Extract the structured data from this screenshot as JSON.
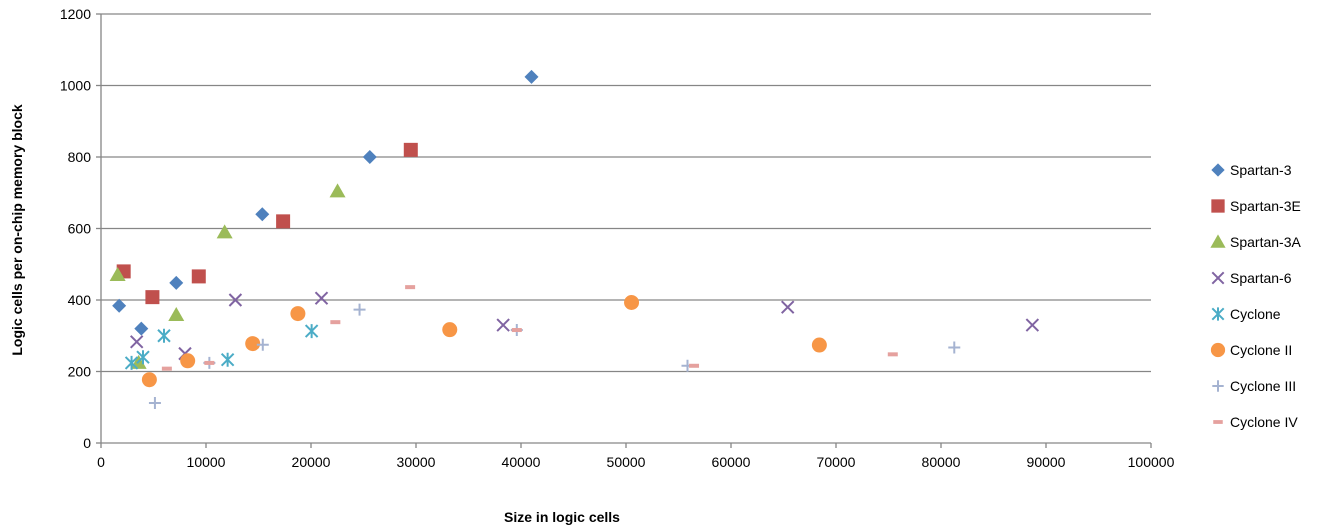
{
  "chart_data": {
    "type": "scatter",
    "title": "",
    "xlabel": "Size in logic cells",
    "ylabel": "Logic cells per on-chip memory block",
    "xlim": [
      0,
      100000
    ],
    "ylim": [
      0,
      1200
    ],
    "x_ticks": [
      "0",
      "10000",
      "20000",
      "30000",
      "40000",
      "50000",
      "60000",
      "70000",
      "80000",
      "90000",
      "100000"
    ],
    "y_ticks": [
      "0",
      "200",
      "400",
      "600",
      "800",
      "1000",
      "1200"
    ],
    "grid": "horizontal",
    "legend_position": "right",
    "series": [
      {
        "name": "Spartan-3",
        "marker": "diamond",
        "color": "#4F81BD",
        "points": [
          [
            1728,
            384
          ],
          [
            3840,
            320
          ],
          [
            7168,
            448
          ],
          [
            15360,
            640
          ],
          [
            25600,
            800
          ],
          [
            41000,
            1024
          ]
        ]
      },
      {
        "name": "Spartan-3E",
        "marker": "square",
        "color": "#C0504D",
        "points": [
          [
            2160,
            480
          ],
          [
            4896,
            408
          ],
          [
            9312,
            466
          ],
          [
            17344,
            620
          ],
          [
            29504,
            820
          ]
        ]
      },
      {
        "name": "Spartan-3A",
        "marker": "triangle",
        "color": "#9BBB59",
        "points": [
          [
            1584,
            470
          ],
          [
            3584,
            224
          ],
          [
            7168,
            358
          ],
          [
            11776,
            589
          ],
          [
            22528,
            704
          ]
        ]
      },
      {
        "name": "Spartan-6",
        "marker": "x",
        "color": "#8064A2",
        "points": [
          [
            3400,
            283
          ],
          [
            8000,
            250
          ],
          [
            12800,
            400
          ],
          [
            21000,
            405
          ],
          [
            38300,
            330
          ],
          [
            65400,
            380
          ],
          [
            88700,
            330
          ]
        ]
      },
      {
        "name": "Cyclone",
        "marker": "asterisk",
        "color": "#4BACC6",
        "points": [
          [
            2910,
            224
          ],
          [
            4000,
            240
          ],
          [
            6000,
            300
          ],
          [
            12060,
            233
          ],
          [
            20060,
            313
          ]
        ]
      },
      {
        "name": "Cyclone II",
        "marker": "circle",
        "color": "#F79646",
        "points": [
          [
            4608,
            177
          ],
          [
            8256,
            230
          ],
          [
            14448,
            278
          ],
          [
            18752,
            362
          ],
          [
            33216,
            317
          ],
          [
            50528,
            393
          ],
          [
            68416,
            274
          ]
        ]
      },
      {
        "name": "Cyclone III",
        "marker": "plus",
        "color": "#A5B3D1",
        "points": [
          [
            5136,
            112
          ],
          [
            10320,
            224
          ],
          [
            15408,
            275
          ],
          [
            24624,
            373
          ],
          [
            39600,
            316
          ],
          [
            55856,
            216
          ],
          [
            81264,
            267
          ]
        ]
      },
      {
        "name": "Cyclone IV",
        "marker": "dash",
        "color": "#E5A19E",
        "points": [
          [
            6272,
            208
          ],
          [
            10320,
            224
          ],
          [
            22320,
            338
          ],
          [
            29440,
            436
          ],
          [
            39600,
            316
          ],
          [
            56480,
            216
          ],
          [
            75408,
            248
          ]
        ]
      }
    ]
  }
}
